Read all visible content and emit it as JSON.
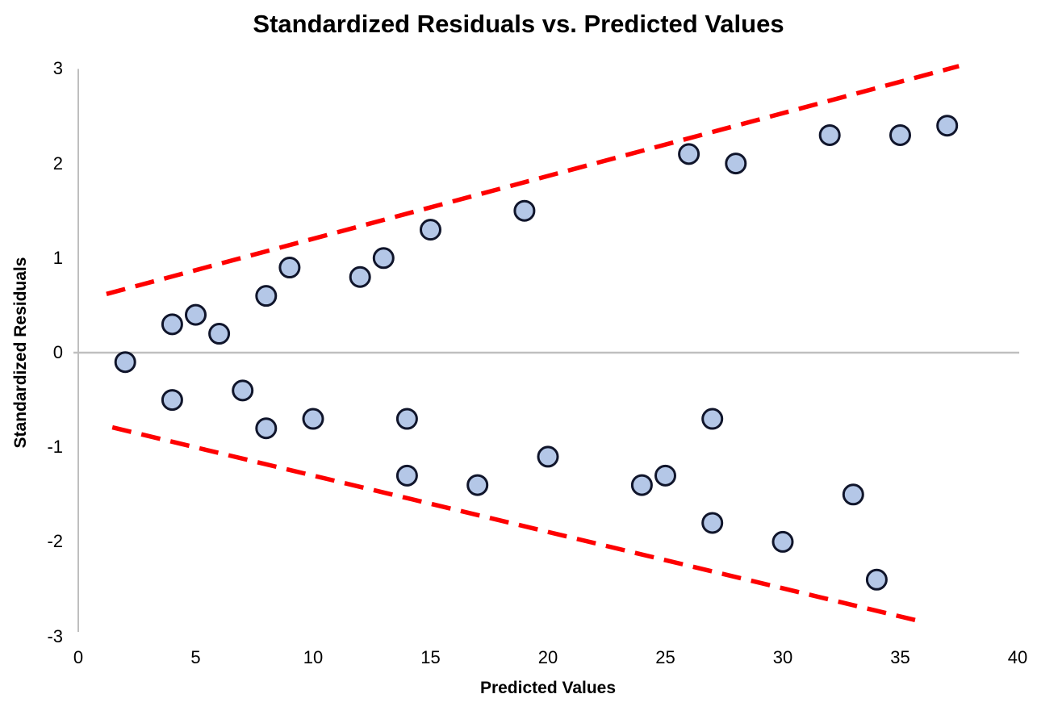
{
  "chart_data": {
    "type": "scatter",
    "title": "Standardized Residuals vs. Predicted Values",
    "xlabel": "Predicted Values",
    "ylabel": "Standardized Residuals",
    "xlim": [
      0,
      40
    ],
    "ylim": [
      -3,
      3
    ],
    "x_ticks": [
      0,
      5,
      10,
      15,
      20,
      25,
      30,
      35,
      40
    ],
    "y_ticks": [
      3,
      2,
      1,
      0,
      -1,
      -2,
      -3
    ],
    "grid": "zero-line-only",
    "legend_position": "none",
    "series": [
      {
        "name": "Standardized Residuals",
        "marker": "circle",
        "points": [
          [
            2,
            -0.1
          ],
          [
            4,
            0.3
          ],
          [
            4,
            -0.5
          ],
          [
            5,
            0.4
          ],
          [
            6,
            0.2
          ],
          [
            7,
            -0.4
          ],
          [
            8,
            0.6
          ],
          [
            8,
            -0.8
          ],
          [
            9,
            0.9
          ],
          [
            10,
            -0.7
          ],
          [
            12,
            0.8
          ],
          [
            13,
            1.0
          ],
          [
            14,
            -0.7
          ],
          [
            14,
            -1.3
          ],
          [
            15,
            1.3
          ],
          [
            17,
            -1.4
          ],
          [
            19,
            1.5
          ],
          [
            20,
            -1.1
          ],
          [
            24,
            -1.4
          ],
          [
            25,
            -1.3
          ],
          [
            26,
            2.1
          ],
          [
            27,
            -0.7
          ],
          [
            27,
            -1.8
          ],
          [
            28,
            2.0
          ],
          [
            30,
            -2.0
          ],
          [
            32,
            2.3
          ],
          [
            33,
            -1.5
          ],
          [
            34,
            -2.4
          ],
          [
            35,
            2.3
          ],
          [
            37,
            2.4
          ]
        ]
      }
    ],
    "limit_lines": [
      {
        "name": "upper-funnel-boundary",
        "style": "dashed",
        "x1": 1.2,
        "y1": 0.62,
        "x2": 37.5,
        "y2": 3.03
      },
      {
        "name": "lower-funnel-boundary",
        "style": "dashed",
        "x1": 1.45,
        "y1": -0.79,
        "x2": 35.85,
        "y2": -2.84
      }
    ],
    "colors": {
      "point_fill": "#b4c7e7",
      "point_stroke": "#10152b",
      "limit_line": "#fe0000",
      "axis_line": "#bfbfbf",
      "text": "#000000"
    }
  }
}
